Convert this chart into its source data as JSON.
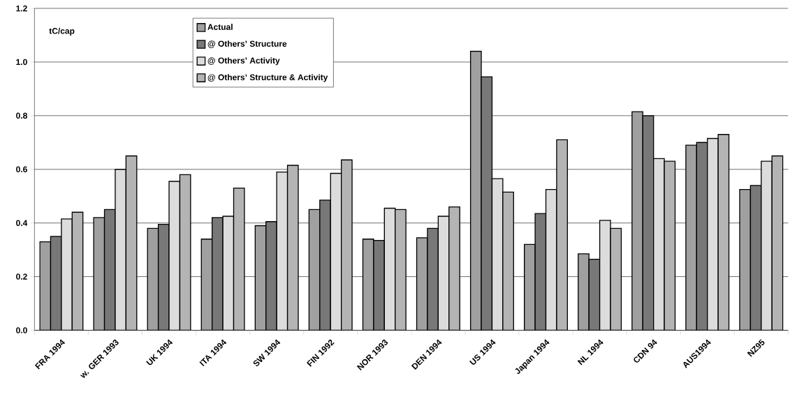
{
  "chart_data": {
    "type": "bar",
    "ylabel": "tC/cap",
    "categories": [
      "FRA 1994",
      "w. GER 1993",
      "UK 1994",
      "ITA 1994",
      "SW 1994",
      "FIN 1992",
      "NOR 1993",
      "DEN 1994",
      "US 1994",
      "Japan 1994",
      "NL 1994",
      "CDN 94",
      "AUS1994",
      "NZ95"
    ],
    "series": [
      {
        "name": "Actual",
        "color": "#a0a0a0",
        "values": [
          0.33,
          0.42,
          0.38,
          0.34,
          0.39,
          0.45,
          0.34,
          0.345,
          1.04,
          0.32,
          0.285,
          0.815,
          0.69,
          0.525
        ]
      },
      {
        "name": "@ Others’ Structure",
        "color": "#787878",
        "values": [
          0.35,
          0.45,
          0.395,
          0.42,
          0.405,
          0.485,
          0.335,
          0.38,
          0.945,
          0.435,
          0.265,
          0.8,
          0.7,
          0.54
        ]
      },
      {
        "name": "@ Others’ Activity",
        "color": "#dcdcdc",
        "values": [
          0.415,
          0.6,
          0.555,
          0.425,
          0.59,
          0.585,
          0.455,
          0.425,
          0.565,
          0.525,
          0.41,
          0.64,
          0.715,
          0.63
        ]
      },
      {
        "name": "@ Others’ Structure & Activity",
        "color": "#b4b4b4",
        "values": [
          0.44,
          0.65,
          0.58,
          0.53,
          0.615,
          0.635,
          0.45,
          0.46,
          0.515,
          0.71,
          0.38,
          0.63,
          0.73,
          0.65
        ]
      }
    ],
    "ylim": [
      0,
      1.2
    ],
    "yticks": [
      {
        "value": 0,
        "label": "0.0"
      },
      {
        "value": 0.2,
        "label": "0.2"
      },
      {
        "value": 0.4,
        "label": "0.4"
      },
      {
        "value": 0.6,
        "label": "0.6"
      },
      {
        "value": 0.8,
        "label": "0.8"
      },
      {
        "value": 1.0,
        "label": "1.0"
      },
      {
        "value": 1.2,
        "label": "1.2"
      }
    ],
    "grid": "y",
    "legend": "top"
  }
}
